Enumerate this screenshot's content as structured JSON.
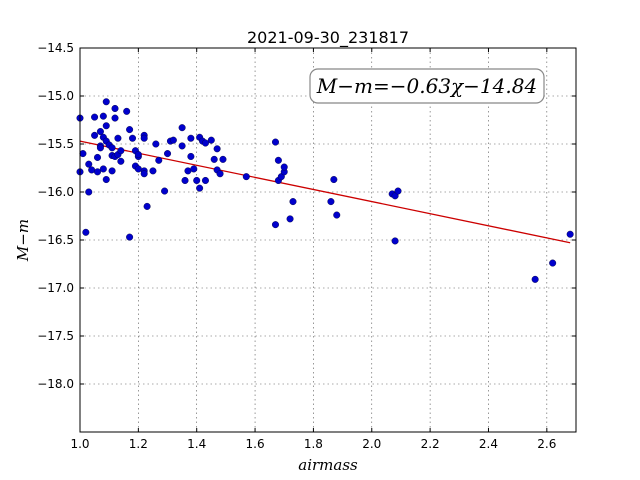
{
  "chart_data": {
    "type": "scatter",
    "title": "2021-09-30_231817",
    "xlabel": "airmass",
    "ylabel": "M−m",
    "xlim": [
      1.0,
      2.7
    ],
    "ylim": [
      -14.5,
      -18.5
    ],
    "y_inverted": true,
    "grid": true,
    "xticks": [
      "1.0",
      "1.2",
      "1.4",
      "1.6",
      "1.8",
      "2.0",
      "2.2",
      "2.4",
      "2.6"
    ],
    "yticks": [
      "−14.5",
      "−15.0",
      "−15.5",
      "−16.0",
      "−16.5",
      "−17.0",
      "−17.5",
      "−18.0"
    ],
    "annotation": "M−m=−0.63χ−14.84",
    "marker_color": "#0000cc",
    "fit_color": "#cc0000",
    "fit": {
      "slope": -0.63,
      "intercept": -14.84,
      "x_range": [
        1.0,
        2.68
      ]
    },
    "points": [
      [
        1.0,
        -15.23
      ],
      [
        1.0,
        -15.79
      ],
      [
        1.01,
        -15.6
      ],
      [
        1.02,
        -16.42
      ],
      [
        1.03,
        -15.71
      ],
      [
        1.03,
        -16.0
      ],
      [
        1.04,
        -15.77
      ],
      [
        1.05,
        -15.41
      ],
      [
        1.05,
        -15.22
      ],
      [
        1.06,
        -15.64
      ],
      [
        1.06,
        -15.79
      ],
      [
        1.07,
        -15.37
      ],
      [
        1.07,
        -15.52
      ],
      [
        1.07,
        -15.54
      ],
      [
        1.08,
        -15.21
      ],
      [
        1.08,
        -15.76
      ],
      [
        1.08,
        -15.43
      ],
      [
        1.09,
        -15.06
      ],
      [
        1.09,
        -15.31
      ],
      [
        1.09,
        -15.47
      ],
      [
        1.09,
        -15.87
      ],
      [
        1.1,
        -15.51
      ],
      [
        1.11,
        -15.78
      ],
      [
        1.11,
        -15.62
      ],
      [
        1.11,
        -15.54
      ],
      [
        1.12,
        -15.23
      ],
      [
        1.12,
        -15.13
      ],
      [
        1.12,
        -15.63
      ],
      [
        1.13,
        -15.61
      ],
      [
        1.13,
        -15.44
      ],
      [
        1.14,
        -15.57
      ],
      [
        1.14,
        -15.68
      ],
      [
        1.16,
        -15.16
      ],
      [
        1.17,
        -15.35
      ],
      [
        1.17,
        -16.47
      ],
      [
        1.18,
        -15.44
      ],
      [
        1.19,
        -15.73
      ],
      [
        1.19,
        -15.57
      ],
      [
        1.2,
        -15.63
      ],
      [
        1.2,
        -15.61
      ],
      [
        1.2,
        -15.76
      ],
      [
        1.22,
        -15.41
      ],
      [
        1.22,
        -15.44
      ],
      [
        1.22,
        -15.78
      ],
      [
        1.22,
        -15.81
      ],
      [
        1.23,
        -16.15
      ],
      [
        1.25,
        -15.78
      ],
      [
        1.26,
        -15.5
      ],
      [
        1.27,
        -15.67
      ],
      [
        1.29,
        -15.99
      ],
      [
        1.3,
        -15.6
      ],
      [
        1.31,
        -15.47
      ],
      [
        1.32,
        -15.46
      ],
      [
        1.35,
        -15.33
      ],
      [
        1.35,
        -15.52
      ],
      [
        1.36,
        -15.88
      ],
      [
        1.37,
        -15.78
      ],
      [
        1.38,
        -15.44
      ],
      [
        1.38,
        -15.63
      ],
      [
        1.39,
        -15.76
      ],
      [
        1.4,
        -15.88
      ],
      [
        1.41,
        -15.96
      ],
      [
        1.41,
        -15.43
      ],
      [
        1.42,
        -15.47
      ],
      [
        1.43,
        -15.49
      ],
      [
        1.43,
        -15.88
      ],
      [
        1.45,
        -15.46
      ],
      [
        1.46,
        -15.66
      ],
      [
        1.47,
        -15.77
      ],
      [
        1.47,
        -15.55
      ],
      [
        1.48,
        -15.81
      ],
      [
        1.49,
        -15.66
      ],
      [
        1.57,
        -15.84
      ],
      [
        1.67,
        -16.34
      ],
      [
        1.67,
        -15.48
      ],
      [
        1.68,
        -15.88
      ],
      [
        1.68,
        -15.67
      ],
      [
        1.69,
        -15.84
      ],
      [
        1.7,
        -15.79
      ],
      [
        1.7,
        -15.74
      ],
      [
        1.72,
        -16.28
      ],
      [
        1.73,
        -16.1
      ],
      [
        1.86,
        -16.1
      ],
      [
        1.87,
        -15.87
      ],
      [
        1.88,
        -16.24
      ],
      [
        2.07,
        -16.02
      ],
      [
        2.08,
        -16.04
      ],
      [
        2.08,
        -16.51
      ],
      [
        2.09,
        -15.99
      ],
      [
        2.56,
        -16.91
      ],
      [
        2.62,
        -16.74
      ],
      [
        2.68,
        -16.44
      ]
    ]
  }
}
